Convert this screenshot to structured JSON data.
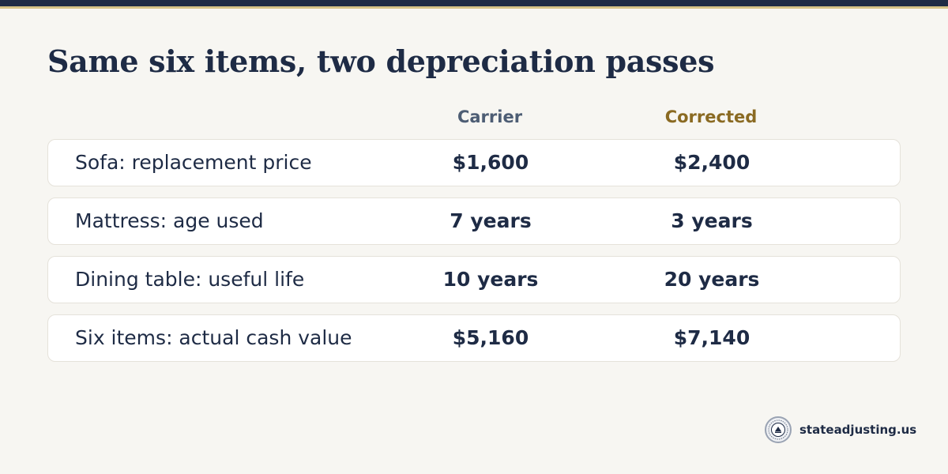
{
  "title": "Same six items, two depreciation passes",
  "columns": {
    "carrier": "Carrier",
    "corrected": "Corrected"
  },
  "rows": [
    {
      "label": "Sofa: replacement price",
      "carrier": "$1,600",
      "corrected": "$2,400"
    },
    {
      "label": "Mattress: age used",
      "carrier": "7 years",
      "corrected": "3 years"
    },
    {
      "label": "Dining table: useful life",
      "carrier": "10 years",
      "corrected": "20 years"
    },
    {
      "label": "Six items: actual cash value",
      "carrier": "$5,160",
      "corrected": "$7,140"
    }
  ],
  "footer": {
    "domain": "stateadjusting.us",
    "logo_icon": "seal-logo-icon"
  },
  "colors": {
    "navy": "#1e2b45",
    "carrier_head": "#4d5d74",
    "corrected_head": "#8a6a22",
    "accent_gold": "#d6c387",
    "background": "#f7f6f2"
  }
}
